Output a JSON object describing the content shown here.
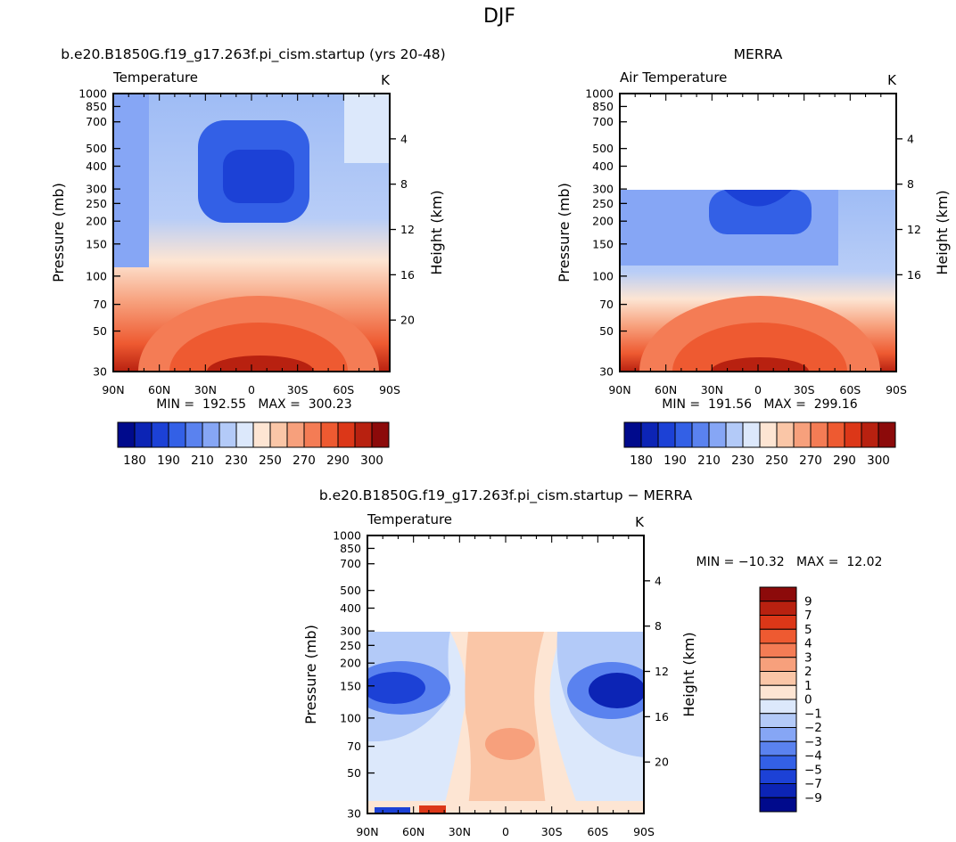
{
  "figure": {
    "season": "DJF"
  },
  "chart_data": [
    {
      "type": "contour",
      "title": "b.e20.B1850G.f19_g17.263f.pi_cism.startup (yrs 20-48)",
      "left_label": "Temperature",
      "units": "K",
      "xlabel": "",
      "ylabel": "Pressure (mb)",
      "ylabel_right": "Height (km)",
      "x_ticks": [
        "90N",
        "60N",
        "30N",
        "0",
        "30S",
        "60S",
        "90S"
      ],
      "y_ticks": [
        "30",
        "50",
        "70",
        "100",
        "150",
        "200",
        "250",
        "300",
        "400",
        "500",
        "700",
        "850",
        "1000"
      ],
      "y_right_ticks": [
        "20",
        "16",
        "12",
        "8",
        "4"
      ],
      "ylim": [
        1000,
        30
      ],
      "stats": "MIN =  192.55   MAX =  300.23",
      "min": 192.55,
      "max": 300.23,
      "colorbar_labels": [
        "180",
        "190",
        "210",
        "230",
        "250",
        "270",
        "290",
        "300"
      ],
      "colorbar_colors": [
        "#000a8c",
        "#0c24b5",
        "#1c41d6",
        "#3360e6",
        "#5a82ef",
        "#86a6f5",
        "#b3caf8",
        "#dce8fb",
        "#fde5d3",
        "#fac6a7",
        "#f7a07c",
        "#f47c55",
        "#ee5a31",
        "#dc3718",
        "#b82110",
        "#8c0a0a"
      ]
    },
    {
      "type": "contour",
      "title": "MERRA",
      "left_label": "Air Temperature",
      "units": "K",
      "xlabel": "",
      "ylabel": "Pressure (mb)",
      "ylabel_right": "Height (km)",
      "x_ticks": [
        "90N",
        "60N",
        "30N",
        "0",
        "30S",
        "60S",
        "90S"
      ],
      "y_ticks": [
        "30",
        "50",
        "70",
        "100",
        "150",
        "200",
        "250",
        "300",
        "400",
        "500",
        "700",
        "850",
        "1000"
      ],
      "y_right_ticks": [
        "16",
        "12",
        "8",
        "4"
      ],
      "ylim": [
        1000,
        30
      ],
      "stats": "MIN =  191.56   MAX =  299.16",
      "min": 191.56,
      "max": 299.16,
      "colorbar_labels": [
        "180",
        "190",
        "210",
        "230",
        "250",
        "270",
        "290",
        "300"
      ],
      "colorbar_colors": [
        "#000a8c",
        "#0c24b5",
        "#1c41d6",
        "#3360e6",
        "#5a82ef",
        "#86a6f5",
        "#b3caf8",
        "#dce8fb",
        "#fde5d3",
        "#fac6a7",
        "#f7a07c",
        "#f47c55",
        "#ee5a31",
        "#dc3718",
        "#b82110",
        "#8c0a0a"
      ]
    },
    {
      "type": "contour",
      "title": "b.e20.B1850G.f19_g17.263f.pi_cism.startup − MERRA",
      "left_label": "Temperature",
      "units": "K",
      "xlabel": "",
      "ylabel": "Pressure (mb)",
      "ylabel_right": "Height (km)",
      "x_ticks": [
        "90N",
        "60N",
        "30N",
        "0",
        "30S",
        "60S",
        "90S"
      ],
      "y_ticks": [
        "30",
        "50",
        "70",
        "100",
        "150",
        "200",
        "250",
        "300",
        "400",
        "500",
        "700",
        "850",
        "1000"
      ],
      "y_right_ticks": [
        "20",
        "16",
        "12",
        "8",
        "4"
      ],
      "ylim": [
        1000,
        30
      ],
      "stats": "MIN = −10.32   MAX =  12.02",
      "min": -10.32,
      "max": 12.02,
      "colorbar_labels": [
        "9",
        "7",
        "5",
        "4",
        "3",
        "2",
        "1",
        "0",
        "−1",
        "−2",
        "−3",
        "−4",
        "−5",
        "−7",
        "−9"
      ],
      "colorbar_colors": [
        "#8c0a0a",
        "#b82110",
        "#dc3718",
        "#ee5a31",
        "#f47c55",
        "#f7a07c",
        "#fac6a7",
        "#fde5d3",
        "#dce8fb",
        "#b3caf8",
        "#86a6f5",
        "#5a82ef",
        "#3360e6",
        "#1c41d6",
        "#0c24b5",
        "#000a8c"
      ]
    }
  ]
}
